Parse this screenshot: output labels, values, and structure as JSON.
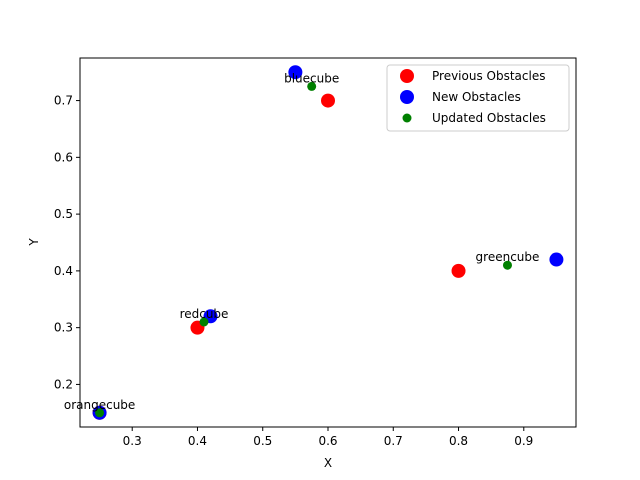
{
  "chart_data": {
    "type": "scatter",
    "title": "",
    "xlabel": "X",
    "ylabel": "Y",
    "xlim": [
      0.22,
      0.98
    ],
    "ylim": [
      0.125,
      0.775
    ],
    "xticks": [
      0.3,
      0.4,
      0.5,
      0.6,
      0.7,
      0.8,
      0.9
    ],
    "yticks": [
      0.2,
      0.3,
      0.4,
      0.5,
      0.6,
      0.7
    ],
    "grid": false,
    "legend_position": "top-right",
    "series": [
      {
        "name": "Previous Obstacles",
        "color": "#ff0000",
        "marker": "large",
        "points": [
          {
            "x": 0.6,
            "y": 0.7
          },
          {
            "x": 0.8,
            "y": 0.4
          },
          {
            "x": 0.4,
            "y": 0.3
          },
          {
            "x": 0.25,
            "y": 0.15
          }
        ]
      },
      {
        "name": "New Obstacles",
        "color": "#0000ff",
        "marker": "large",
        "points": [
          {
            "x": 0.55,
            "y": 0.75
          },
          {
            "x": 0.95,
            "y": 0.42
          },
          {
            "x": 0.42,
            "y": 0.32
          },
          {
            "x": 0.25,
            "y": 0.15
          }
        ]
      },
      {
        "name": "Updated Obstacles",
        "color": "#008000",
        "marker": "small",
        "points": [
          {
            "x": 0.575,
            "y": 0.725
          },
          {
            "x": 0.875,
            "y": 0.41
          },
          {
            "x": 0.41,
            "y": 0.31
          },
          {
            "x": 0.25,
            "y": 0.15
          }
        ]
      }
    ],
    "annotations": [
      {
        "text": "bluecube",
        "x": 0.575,
        "y": 0.725
      },
      {
        "text": "greencube",
        "x": 0.875,
        "y": 0.41
      },
      {
        "text": "redcube",
        "x": 0.41,
        "y": 0.31
      },
      {
        "text": "orangecube",
        "x": 0.25,
        "y": 0.15
      }
    ]
  }
}
